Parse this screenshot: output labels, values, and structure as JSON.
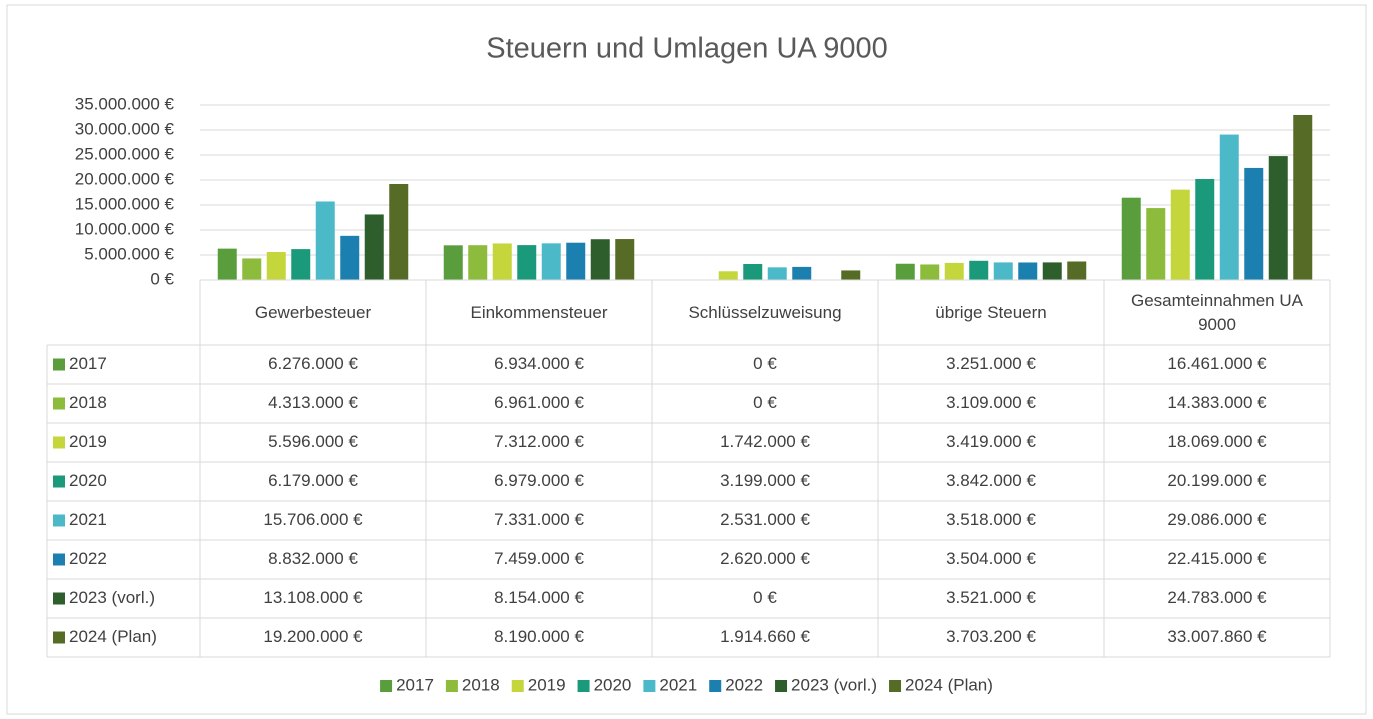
{
  "chart_data": {
    "type": "bar",
    "title": "Steuern und Umlagen UA 9000",
    "categories": [
      "Gewerbesteuer",
      "Einkommensteuer",
      "Schlüsselzuweisung",
      "übrige Steuern",
      "Gesamteinnahmen UA 9000"
    ],
    "series": [
      {
        "name": "2017",
        "color": "#5a9d3c",
        "values": [
          6276000,
          6934000,
          0,
          3251000,
          16461000
        ],
        "value_labels": [
          "6.276.000 €",
          "6.934.000 €",
          "0 €",
          "3.251.000 €",
          "16.461.000 €"
        ]
      },
      {
        "name": "2018",
        "color": "#8dbb3b",
        "values": [
          4313000,
          6961000,
          0,
          3109000,
          14383000
        ],
        "value_labels": [
          "4.313.000 €",
          "6.961.000 €",
          "0 €",
          "3.109.000 €",
          "14.383.000 €"
        ]
      },
      {
        "name": "2019",
        "color": "#c5d53c",
        "values": [
          5596000,
          7312000,
          1742000,
          3419000,
          18069000
        ],
        "value_labels": [
          "5.596.000 €",
          "7.312.000 €",
          "1.742.000 €",
          "3.419.000 €",
          "18.069.000 €"
        ]
      },
      {
        "name": "2020",
        "color": "#1b9a7b",
        "values": [
          6179000,
          6979000,
          3199000,
          3842000,
          20199000
        ],
        "value_labels": [
          "6.179.000 €",
          "6.979.000 €",
          "3.199.000 €",
          "3.842.000 €",
          "20.199.000 €"
        ]
      },
      {
        "name": "2021",
        "color": "#4cb9c9",
        "values": [
          15706000,
          7331000,
          2531000,
          3518000,
          29086000
        ],
        "value_labels": [
          "15.706.000 €",
          "7.331.000 €",
          "2.531.000 €",
          "3.518.000 €",
          "29.086.000 €"
        ]
      },
      {
        "name": "2022",
        "color": "#1b80b0",
        "values": [
          8832000,
          7459000,
          2620000,
          3504000,
          22415000
        ],
        "value_labels": [
          "8.832.000 €",
          "7.459.000 €",
          "2.620.000 €",
          "3.504.000 €",
          "22.415.000 €"
        ]
      },
      {
        "name": "2023 (vorl.)",
        "color": "#2e5e2b",
        "values": [
          13108000,
          8154000,
          0,
          3521000,
          24783000
        ],
        "value_labels": [
          "13.108.000 €",
          "8.154.000 €",
          "0 €",
          "3.521.000 €",
          "24.783.000 €"
        ]
      },
      {
        "name": "2024 (Plan)",
        "color": "#566c26",
        "values": [
          19200000,
          8190000,
          1914660,
          3703200,
          33007860
        ],
        "value_labels": [
          "19.200.000 €",
          "8.190.000 €",
          "1.914.660 €",
          "3.703.200 €",
          "33.007.860 €"
        ]
      }
    ],
    "ylim": [
      0,
      35000000
    ],
    "yticks": [
      {
        "value": 0,
        "label": "0 €"
      },
      {
        "value": 5000000,
        "label": "5.000.000 €"
      },
      {
        "value": 10000000,
        "label": "10.000.000 €"
      },
      {
        "value": 15000000,
        "label": "15.000.000 €"
      },
      {
        "value": 20000000,
        "label": "20.000.000 €"
      },
      {
        "value": 25000000,
        "label": "25.000.000 €"
      },
      {
        "value": 30000000,
        "label": "30.000.000 €"
      },
      {
        "value": 35000000,
        "label": "35.000.000 €"
      }
    ],
    "grid": true
  }
}
